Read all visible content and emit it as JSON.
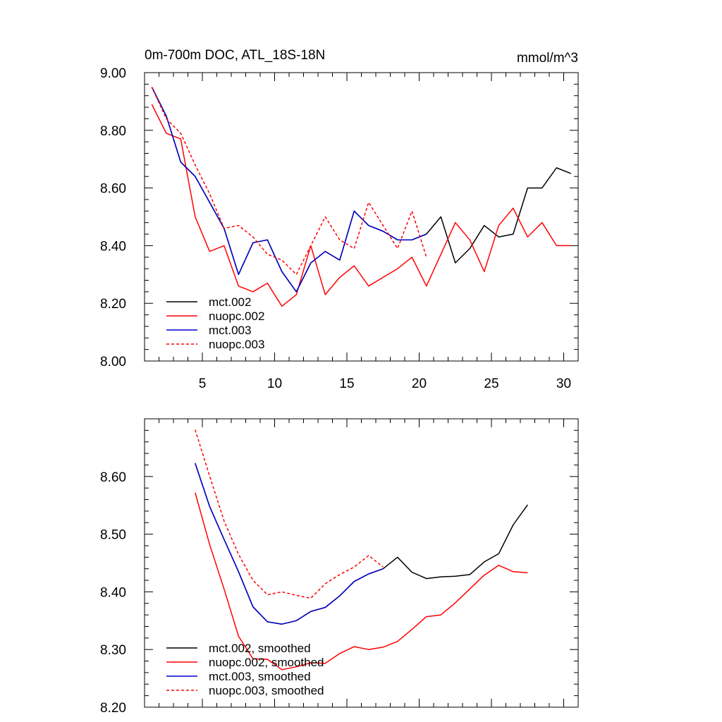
{
  "chart_data": [
    {
      "type": "line",
      "title": "0m-700m DOC, ATL_18S-18N",
      "units": "mmol/m^3",
      "xlabel": "",
      "ylabel": "",
      "xlim": [
        1,
        31
      ],
      "ylim": [
        8.0,
        9.0
      ],
      "xticks": [
        5,
        10,
        15,
        20,
        25,
        30
      ],
      "xtick_labels": [
        "5",
        "10",
        "15",
        "20",
        "25",
        "30"
      ],
      "yticks": [
        8.0,
        8.2,
        8.4,
        8.6,
        8.8,
        9.0
      ],
      "ytick_labels": [
        "8.00",
        "8.20",
        "8.40",
        "8.60",
        "8.80",
        "9.00"
      ],
      "legend_position": "bottom-left",
      "series": [
        {
          "name": "mct.002",
          "color": "#000000",
          "dash": "solid",
          "x": [
            1.5,
            2.5,
            3.5,
            4.5,
            5.5,
            6.5,
            7.5,
            8.5,
            9.5,
            10.5,
            11.5,
            12.5,
            13.5,
            14.5,
            15.5,
            16.5,
            17.5,
            18.5,
            19.5,
            20.5,
            21.5,
            22.5,
            23.5,
            24.5,
            25.5,
            26.5,
            27.5,
            28.5,
            29.5,
            30.5
          ],
          "values": [
            8.95,
            8.85,
            8.69,
            8.64,
            8.55,
            8.46,
            8.3,
            8.41,
            8.42,
            8.31,
            8.24,
            8.34,
            8.38,
            8.35,
            8.52,
            8.47,
            8.45,
            8.42,
            8.42,
            8.44,
            8.5,
            8.34,
            8.39,
            8.47,
            8.43,
            8.44,
            8.6,
            8.6,
            8.67,
            8.65
          ]
        },
        {
          "name": "nuopc.002",
          "color": "#ff0000",
          "dash": "solid",
          "x": [
            1.5,
            2.5,
            3.5,
            4.5,
            5.5,
            6.5,
            7.5,
            8.5,
            9.5,
            10.5,
            11.5,
            12.5,
            13.5,
            14.5,
            15.5,
            16.5,
            17.5,
            18.5,
            19.5,
            20.5,
            21.5,
            22.5,
            23.5,
            24.5,
            25.5,
            26.5,
            27.5,
            28.5,
            29.5,
            30.5
          ],
          "values": [
            8.89,
            8.79,
            8.77,
            8.5,
            8.38,
            8.4,
            8.26,
            8.24,
            8.27,
            8.19,
            8.23,
            8.4,
            8.23,
            8.29,
            8.33,
            8.26,
            8.29,
            8.32,
            8.36,
            8.26,
            8.37,
            8.48,
            8.42,
            8.31,
            8.47,
            8.53,
            8.43,
            8.48,
            8.4,
            8.4
          ]
        },
        {
          "name": "mct.003",
          "color": "#0000cc",
          "dash": "solid",
          "x": [
            1.5,
            2.5,
            3.5,
            4.5,
            5.5,
            6.5,
            7.5,
            8.5,
            9.5,
            10.5,
            11.5,
            12.5,
            13.5,
            14.5,
            15.5,
            16.5,
            17.5,
            18.5,
            19.5,
            20.5
          ],
          "values": [
            8.95,
            8.85,
            8.69,
            8.64,
            8.55,
            8.46,
            8.3,
            8.41,
            8.42,
            8.31,
            8.24,
            8.34,
            8.38,
            8.35,
            8.52,
            8.47,
            8.45,
            8.42,
            8.42,
            8.44
          ]
        },
        {
          "name": "nuopc.003",
          "color": "#ff0000",
          "dash": "dashed",
          "x": [
            1.5,
            2.5,
            3.5,
            4.5,
            5.5,
            6.5,
            7.5,
            8.5,
            9.5,
            10.5,
            11.5,
            12.5,
            13.5,
            14.5,
            15.5,
            16.5,
            17.5,
            18.5,
            19.5,
            20.5
          ],
          "values": [
            8.95,
            8.84,
            8.79,
            8.68,
            8.58,
            8.46,
            8.47,
            8.43,
            8.37,
            8.35,
            8.3,
            8.4,
            8.5,
            8.42,
            8.39,
            8.55,
            8.47,
            8.39,
            8.52,
            8.36
          ]
        }
      ]
    },
    {
      "type": "line",
      "title": "",
      "xlabel": "",
      "ylabel": "",
      "xlim": [
        1,
        31
      ],
      "ylim": [
        8.2,
        8.7
      ],
      "xticks": [
        5,
        10,
        15,
        20,
        25,
        30
      ],
      "yticks": [
        8.2,
        8.3,
        8.4,
        8.5,
        8.6
      ],
      "ytick_labels": [
        "8.20",
        "8.30",
        "8.40",
        "8.50",
        "8.60"
      ],
      "legend_position": "bottom-left",
      "series": [
        {
          "name": "mct.002, smoothed",
          "color": "#000000",
          "dash": "solid",
          "x": [
            4.5,
            5.5,
            6.5,
            7.5,
            8.5,
            9.5,
            10.5,
            11.5,
            12.5,
            13.5,
            14.5,
            15.5,
            16.5,
            17.5,
            18.5,
            19.5,
            20.5,
            21.5,
            22.5,
            23.5,
            24.5,
            25.5,
            26.5,
            27.5
          ],
          "values": [
            8.623,
            8.548,
            8.491,
            8.435,
            8.374,
            8.348,
            8.344,
            8.35,
            8.366,
            8.373,
            8.393,
            8.418,
            8.431,
            8.44,
            8.46,
            8.434,
            8.423,
            8.426,
            8.427,
            8.43,
            8.452,
            8.466,
            8.516,
            8.551
          ]
        },
        {
          "name": "nuopc.002, smoothed",
          "color": "#ff0000",
          "dash": "solid",
          "x": [
            4.5,
            5.5,
            6.5,
            7.5,
            8.5,
            9.5,
            10.5,
            11.5,
            12.5,
            13.5,
            14.5,
            15.5,
            16.5,
            17.5,
            18.5,
            19.5,
            20.5,
            21.5,
            22.5,
            23.5,
            24.5,
            25.5,
            26.5,
            27.5
          ],
          "values": [
            8.572,
            8.482,
            8.405,
            8.323,
            8.284,
            8.283,
            8.265,
            8.27,
            8.277,
            8.276,
            8.293,
            8.305,
            8.3,
            8.304,
            8.314,
            8.335,
            8.357,
            8.36,
            8.381,
            8.405,
            8.429,
            8.446,
            8.435,
            8.433
          ]
        },
        {
          "name": "mct.003, smoothed",
          "color": "#0000cc",
          "dash": "solid",
          "x": [
            4.5,
            5.5,
            6.5,
            7.5,
            8.5,
            9.5,
            10.5,
            11.5,
            12.5,
            13.5,
            14.5,
            15.5,
            16.5,
            17.5
          ],
          "values": [
            8.623,
            8.548,
            8.491,
            8.435,
            8.374,
            8.348,
            8.344,
            8.35,
            8.366,
            8.373,
            8.393,
            8.418,
            8.431,
            8.44
          ]
        },
        {
          "name": "nuopc.003, smoothed",
          "color": "#ff0000",
          "dash": "dashed",
          "x": [
            4.5,
            5.5,
            6.5,
            7.5,
            8.5,
            9.5,
            10.5,
            11.5,
            12.5,
            13.5,
            14.5,
            15.5,
            16.5,
            17.5
          ],
          "values": [
            8.681,
            8.601,
            8.523,
            8.465,
            8.42,
            8.395,
            8.4,
            8.394,
            8.389,
            8.414,
            8.43,
            8.443,
            8.463,
            8.443
          ]
        }
      ]
    }
  ]
}
